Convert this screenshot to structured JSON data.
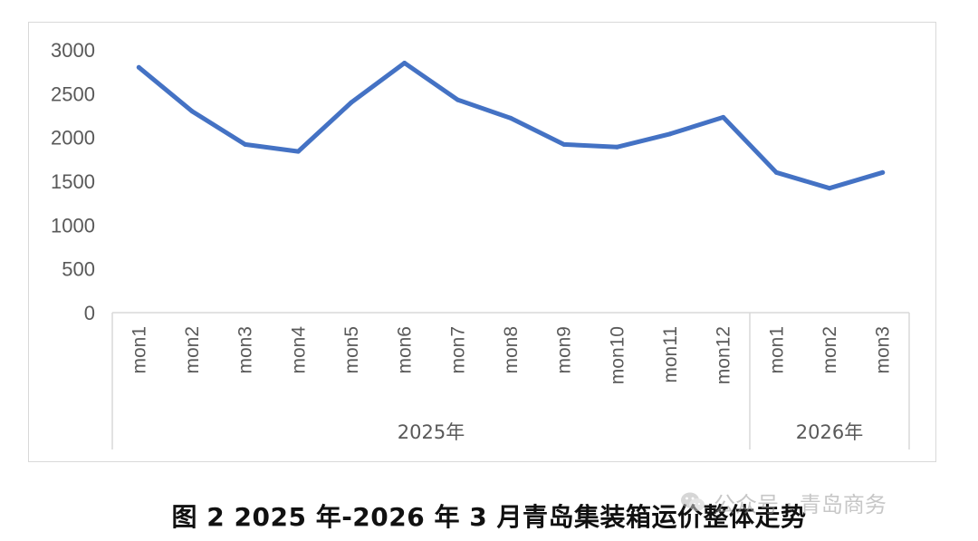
{
  "chart_data": {
    "type": "line",
    "categories": [
      "mon1",
      "mon2",
      "mon3",
      "mon4",
      "mon5",
      "mon6",
      "mon7",
      "mon8",
      "mon9",
      "mon10",
      "mon11",
      "mon12",
      "mon1",
      "mon2",
      "mon3"
    ],
    "category_groups": [
      {
        "label": "2025年",
        "count": 12
      },
      {
        "label": "2026年",
        "count": 3
      }
    ],
    "series": [
      {
        "values": [
          2800,
          2300,
          1920,
          1840,
          2400,
          2850,
          2430,
          2220,
          1920,
          1890,
          2040,
          2230,
          1600,
          1420,
          1600
        ]
      }
    ],
    "ylim": [
      0,
      3000
    ],
    "yticks": [
      0,
      500,
      1000,
      1500,
      2000,
      2500,
      3000
    ],
    "grid": false,
    "legend": "none",
    "line_color": "#4472c4"
  },
  "caption": "图 2 2025 年-2026 年 3 月青岛集装箱运价整体走势",
  "watermark": {
    "text": "公众号 · 青岛商务",
    "icon": "wechat-icon"
  }
}
